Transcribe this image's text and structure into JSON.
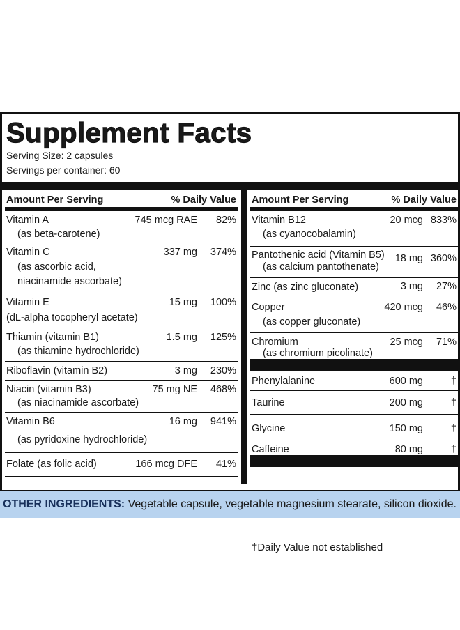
{
  "title": "Supplement Facts",
  "serving_size": "Serving Size: 2 capsules",
  "servings_per_container": "Servings per container: 60",
  "header": {
    "amount": "Amount Per Serving",
    "dv": "% Daily Value"
  },
  "left": [
    {
      "name": "Vitamin A",
      "sub1": "(as beta-carotene)",
      "sub2": "",
      "amount": "745 mcg RAE",
      "dv": "82%"
    },
    {
      "name": "Vitamin C",
      "sub1": "(as ascorbic acid,",
      "sub2": "niacinamide ascorbate)",
      "amount": "337 mg",
      "dv": "374%"
    },
    {
      "name": "Vitamin E",
      "sub1": "(dL-alpha tocopheryl acetate)",
      "sub2": "",
      "amount": "15 mg",
      "dv": "100%"
    },
    {
      "name": "Thiamin (vitamin B1)",
      "sub1": "(as thiamine hydrochloride)",
      "sub2": "",
      "amount": "1.5 mg",
      "dv": "125%"
    },
    {
      "name": "Riboflavin (vitamin B2)",
      "sub1": "",
      "sub2": "",
      "amount": "3 mg",
      "dv": "230%"
    },
    {
      "name": "Niacin (vitamin B3)",
      "sub1": "(as niacinamide ascorbate)",
      "sub2": "",
      "amount": "75 mg NE",
      "dv": "468%"
    },
    {
      "name": "Vitamin B6",
      "sub1": "(as pyridoxine hydrochloride)",
      "sub2": "",
      "amount": "16 mg",
      "dv": "941%"
    },
    {
      "name": "Folate (as folic acid)",
      "sub1": "",
      "sub2": "",
      "amount": "166 mcg DFE",
      "dv": "41%"
    }
  ],
  "right": [
    {
      "name": "Vitamin B12",
      "sub1": "(as cyanocobalamin)",
      "amount": "20 mcg",
      "dv": "833%"
    },
    {
      "name": "Pantothenic acid (Vitamin B5)",
      "sub1": "(as calcium pantothenate)",
      "amount": "18 mg",
      "dv": "360%"
    },
    {
      "name": "Zinc (as zinc gluconate)",
      "sub1": "",
      "amount": "3 mg",
      "dv": "27%"
    },
    {
      "name": "Copper",
      "sub1": "(as copper gluconate)",
      "amount": "420 mcg",
      "dv": "46%"
    },
    {
      "name": "Chromium",
      "sub1": "(as chromium picolinate)",
      "amount": "25 mcg",
      "dv": "71%"
    },
    {
      "name": "Phenylalanine",
      "sub1": "",
      "amount": "600 mg",
      "dv": "†"
    },
    {
      "name": "Taurine",
      "sub1": "",
      "amount": "200 mg",
      "dv": "†"
    },
    {
      "name": "Glycine",
      "sub1": "",
      "amount": "150 mg",
      "dv": "†"
    },
    {
      "name": "Caffeine",
      "sub1": "",
      "amount": "80 mg",
      "dv": "†"
    }
  ],
  "footnote": "†Daily Value not established",
  "other_label": "OTHER INGREDIENTS:",
  "other_text": " Vegetable capsule, vegetable magnesium stearate, silicon dioxide."
}
